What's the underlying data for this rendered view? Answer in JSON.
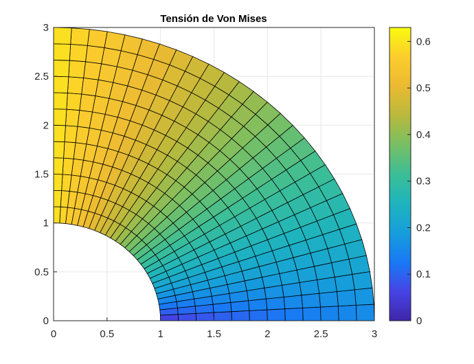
{
  "chart_data": {
    "type": "heatmap",
    "title": "Tensión de Von Mises",
    "xlabel": "",
    "ylabel": "",
    "xlim": [
      0,
      3
    ],
    "ylim": [
      0,
      3
    ],
    "grid": true,
    "x_ticks": [
      "0",
      "0.5",
      "1",
      "1.5",
      "2",
      "2.5",
      "3"
    ],
    "y_ticks": [
      "0",
      "0.5",
      "1",
      "1.5",
      "2",
      "2.5",
      "3"
    ],
    "mesh": {
      "shape": "quarter annulus",
      "inner_radius": 1,
      "outer_radius": 3,
      "radial_divisions": 12,
      "angular_divisions": 28,
      "stress_at_inner_x_axis": 0.02,
      "stress_at_inner_y_axis": 0.6,
      "stress_at_outer_x_axis": 0.15,
      "stress_at_outer_y_axis": 0.6
    },
    "colorbar": {
      "limits": [
        0,
        0.63
      ],
      "ticks": [
        "0",
        "0.1",
        "0.2",
        "0.3",
        "0.4",
        "0.5",
        "0.6"
      ],
      "colormap": "parula"
    }
  }
}
